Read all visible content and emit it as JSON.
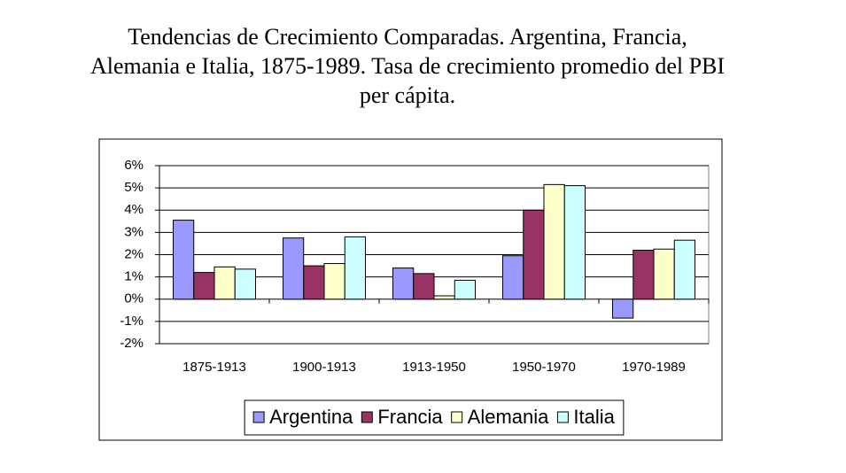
{
  "chart_data": {
    "type": "bar",
    "title": "Tendencias de Crecimiento Comparadas. Argentina, Francia, Alemania e Italia, 1875-1989. Tasa de crecimiento promedio del PBI per cápita.",
    "categories": [
      "1875-1913",
      "1900-1913",
      "1913-1950",
      "1950-1970",
      "1970-1989"
    ],
    "series": [
      {
        "name": "Argentina",
        "color": "#9999ff",
        "values": [
          3.55,
          2.75,
          1.4,
          1.95,
          -0.85
        ]
      },
      {
        "name": "Francia",
        "color": "#993366",
        "values": [
          1.2,
          1.5,
          1.15,
          4.0,
          2.2
        ]
      },
      {
        "name": "Alemania",
        "color": "#ffffcc",
        "values": [
          1.45,
          1.6,
          0.15,
          5.15,
          2.25
        ]
      },
      {
        "name": "Italia",
        "color": "#ccffff",
        "values": [
          1.35,
          2.8,
          0.85,
          5.1,
          2.65
        ]
      }
    ],
    "ylim": [
      -2,
      6
    ],
    "yticks": [
      {
        "value": -2,
        "label": "-2%"
      },
      {
        "value": -1,
        "label": "-1%"
      },
      {
        "value": 0,
        "label": "0%"
      },
      {
        "value": 1,
        "label": "1%"
      },
      {
        "value": 2,
        "label": "2%"
      },
      {
        "value": 3,
        "label": "3%"
      },
      {
        "value": 4,
        "label": "4%"
      },
      {
        "value": 5,
        "label": "5%"
      },
      {
        "value": 6,
        "label": "6%"
      }
    ],
    "grid": true,
    "legend": "bottom"
  }
}
